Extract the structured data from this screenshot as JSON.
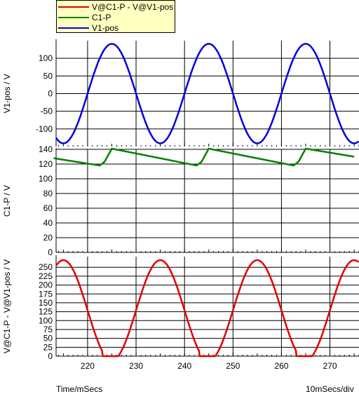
{
  "colors": {
    "red": "#e00000",
    "green": "#008000",
    "blue": "#0000e0",
    "legend_bg": "#ffffc0"
  },
  "legend": [
    {
      "label": "V@C1-P - V@V1-pos",
      "color": "#e00000"
    },
    {
      "label": "C1-P",
      "color": "#008000"
    },
    {
      "label": "V1-pos",
      "color": "#0000e0"
    }
  ],
  "footer": {
    "xlabel": "Time/mSecs",
    "scale": "10mSecs/div"
  },
  "chart_data": [
    {
      "type": "line",
      "ylabel": "V1-pos / V",
      "ylim": [
        -150,
        150
      ],
      "yticks": [
        -100,
        -50,
        0,
        50,
        100
      ],
      "series": [
        {
          "name": "V1-pos",
          "color": "#0000e0",
          "x": [
            213,
            215,
            217.5,
            220,
            222.5,
            225,
            227.5,
            230,
            232.5,
            235,
            237.5,
            240,
            242.5,
            245,
            247.5,
            250,
            252.5,
            255,
            257.5,
            260,
            262.5,
            265,
            267.5,
            270,
            272.5,
            275
          ],
          "y": [
            -139,
            -141,
            -100,
            0,
            100,
            141,
            100,
            0,
            -100,
            -141,
            -100,
            0,
            100,
            141,
            100,
            0,
            -100,
            -141,
            -100,
            0,
            100,
            141,
            100,
            0,
            -100,
            -141
          ]
        }
      ]
    },
    {
      "type": "line",
      "ylabel": "C1-P / V",
      "ylim": [
        0,
        140
      ],
      "yticks": [
        0,
        20,
        40,
        60,
        80,
        100,
        120,
        140
      ],
      "series": [
        {
          "name": "C1-P",
          "color": "#008000",
          "x": [
            213,
            222.5,
            223.5,
            225,
            242.5,
            243.5,
            245,
            262.5,
            263.5,
            265,
            275
          ],
          "y": [
            128,
            118,
            123,
            141,
            118,
            123,
            141,
            118,
            123,
            141,
            130
          ]
        }
      ]
    },
    {
      "type": "line",
      "ylabel": "V@C1-P - V@V1-pos / V",
      "ylim": [
        0,
        280
      ],
      "yticks": [
        0,
        25,
        50,
        75,
        100,
        125,
        150,
        175,
        200,
        225,
        250
      ],
      "series": [
        {
          "name": "V@C1-P - V@V1-pos",
          "color": "#e00000",
          "x": [
            213,
            215,
            217.5,
            220,
            222,
            223,
            224,
            225,
            227.5,
            230,
            232.5,
            235,
            237.5,
            240,
            242,
            243,
            244,
            245,
            247.5,
            250,
            252.5,
            255,
            257.5,
            260,
            262,
            263,
            264,
            265,
            267.5,
            270,
            272.5,
            275
          ],
          "y": [
            266,
            270,
            225,
            123,
            40,
            12,
            0,
            0,
            38,
            141,
            238,
            270,
            225,
            123,
            40,
            12,
            0,
            0,
            38,
            141,
            238,
            270,
            225,
            123,
            40,
            12,
            0,
            0,
            38,
            141,
            238,
            270
          ]
        }
      ]
    }
  ],
  "x_axis": {
    "xlim": [
      213.5,
      276
    ],
    "ticks": [
      220,
      230,
      240,
      250,
      260,
      270
    ]
  }
}
